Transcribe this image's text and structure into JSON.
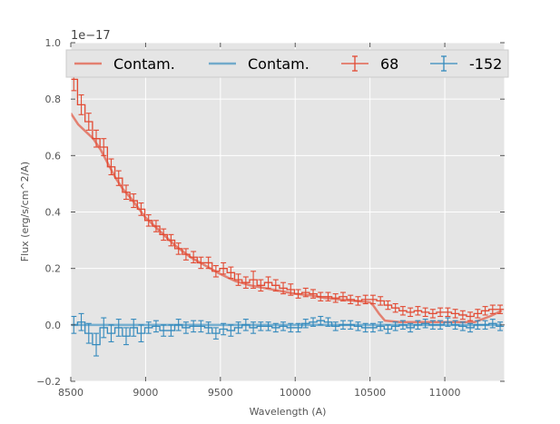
{
  "chart_data": {
    "type": "line",
    "title": "",
    "xlabel": "Wavelength (A)",
    "ylabel": "Flux (erg/s/cm^2/A)",
    "offset_text": "1e−17",
    "scale": 1e-17,
    "xlim": [
      8500,
      11400
    ],
    "ylim": [
      -0.2,
      1.0
    ],
    "x_ticks": [
      8500,
      9000,
      9500,
      10000,
      10500,
      11000
    ],
    "y_ticks": [
      -0.2,
      0.0,
      0.2,
      0.4,
      0.6,
      0.8,
      1.0
    ],
    "x_tick_labels": [
      "8500",
      "9000",
      "9500",
      "10000",
      "10500",
      "11000"
    ],
    "y_tick_labels": [
      "−0.2",
      "0.0",
      "0.2",
      "0.4",
      "0.6",
      "0.8",
      "1.0"
    ],
    "grid": true,
    "legend_position": "top",
    "colors": {
      "red": "#E24A33",
      "blue": "#348ABD",
      "background": "#E5E5E5"
    },
    "series": [
      {
        "name": "Contam.",
        "kind": "line",
        "color": "#E24A33",
        "x": [
          8500,
          8550,
          8600,
          8650,
          8700,
          8750,
          8800,
          8850,
          8900,
          9000,
          9100,
          9200,
          9300,
          9400,
          9500,
          9600,
          9700,
          9800,
          9900,
          10000,
          10100,
          10200,
          10300,
          10400,
          10500,
          10520,
          10560,
          10600,
          10700,
          10800,
          10900,
          11000,
          11100,
          11200,
          11300,
          11380
        ],
        "values": [
          0.75,
          0.71,
          0.685,
          0.66,
          0.62,
          0.57,
          0.52,
          0.48,
          0.45,
          0.38,
          0.33,
          0.28,
          0.24,
          0.21,
          0.18,
          0.155,
          0.14,
          0.13,
          0.12,
          0.11,
          0.105,
          0.095,
          0.09,
          0.085,
          0.08,
          0.07,
          0.04,
          0.015,
          0.01,
          0.01,
          0.01,
          0.01,
          0.01,
          0.01,
          0.03,
          0.05
        ]
      },
      {
        "name": "Contam.",
        "kind": "line",
        "color": "#348ABD",
        "x": [
          8500,
          9000,
          9500,
          10000,
          10500,
          11000,
          11380
        ],
        "values": [
          0.0,
          0.0,
          0.0,
          0.0,
          0.0,
          0.0,
          0.0
        ]
      },
      {
        "name": "68",
        "kind": "errorbar",
        "color": "#E24A33",
        "x": [
          8520,
          8570,
          8620,
          8670,
          8720,
          8770,
          8820,
          8870,
          8920,
          8970,
          9020,
          9070,
          9120,
          9170,
          9220,
          9270,
          9320,
          9370,
          9420,
          9470,
          9520,
          9570,
          9620,
          9670,
          9720,
          9770,
          9820,
          9870,
          9920,
          9970,
          10020,
          10070,
          10120,
          10170,
          10220,
          10270,
          10320,
          10370,
          10420,
          10470,
          10520,
          10570,
          10620,
          10670,
          10720,
          10770,
          10820,
          10870,
          10920,
          10970,
          11020,
          11070,
          11120,
          11170,
          11220,
          11270,
          11320,
          11370
        ],
        "values": [
          0.87,
          0.78,
          0.72,
          0.66,
          0.63,
          0.56,
          0.52,
          0.47,
          0.44,
          0.41,
          0.37,
          0.35,
          0.32,
          0.3,
          0.27,
          0.25,
          0.24,
          0.22,
          0.22,
          0.19,
          0.2,
          0.185,
          0.16,
          0.15,
          0.16,
          0.14,
          0.15,
          0.14,
          0.13,
          0.125,
          0.11,
          0.115,
          0.11,
          0.1,
          0.1,
          0.095,
          0.1,
          0.09,
          0.085,
          0.09,
          0.09,
          0.085,
          0.07,
          0.06,
          0.05,
          0.045,
          0.05,
          0.045,
          0.04,
          0.045,
          0.045,
          0.04,
          0.035,
          0.03,
          0.04,
          0.05,
          0.055,
          0.055
        ],
        "errors": [
          0.04,
          0.035,
          0.03,
          0.03,
          0.03,
          0.028,
          0.026,
          0.025,
          0.024,
          0.022,
          0.02,
          0.02,
          0.02,
          0.02,
          0.02,
          0.02,
          0.02,
          0.02,
          0.02,
          0.02,
          0.02,
          0.02,
          0.02,
          0.02,
          0.03,
          0.02,
          0.02,
          0.02,
          0.02,
          0.02,
          0.015,
          0.015,
          0.015,
          0.015,
          0.015,
          0.015,
          0.015,
          0.015,
          0.015,
          0.015,
          0.015,
          0.015,
          0.015,
          0.015,
          0.015,
          0.015,
          0.015,
          0.015,
          0.015,
          0.015,
          0.015,
          0.015,
          0.015,
          0.015,
          0.015,
          0.015,
          0.015,
          0.015
        ]
      },
      {
        "name": "-152",
        "kind": "errorbar",
        "color": "#348ABD",
        "x": [
          8520,
          8570,
          8620,
          8670,
          8720,
          8770,
          8820,
          8870,
          8920,
          8970,
          9020,
          9070,
          9120,
          9170,
          9220,
          9270,
          9320,
          9370,
          9420,
          9470,
          9520,
          9570,
          9620,
          9670,
          9720,
          9770,
          9820,
          9870,
          9920,
          9970,
          10020,
          10070,
          10120,
          10170,
          10220,
          10270,
          10320,
          10370,
          10420,
          10470,
          10520,
          10570,
          10620,
          10670,
          10720,
          10770,
          10820,
          10870,
          10920,
          10970,
          11020,
          11070,
          11120,
          11170,
          11220,
          11270,
          11320,
          11370
        ],
        "values": [
          0.0,
          0.01,
          -0.03,
          -0.07,
          -0.01,
          -0.03,
          -0.01,
          -0.04,
          -0.01,
          -0.03,
          -0.01,
          -0.005,
          -0.02,
          -0.02,
          0.0,
          -0.01,
          -0.005,
          -0.005,
          -0.01,
          -0.03,
          -0.015,
          -0.02,
          -0.01,
          0.0,
          -0.01,
          -0.005,
          -0.005,
          -0.01,
          -0.005,
          -0.01,
          -0.01,
          0.005,
          0.01,
          0.015,
          0.01,
          -0.005,
          0.0,
          0.0,
          -0.005,
          -0.01,
          -0.01,
          -0.005,
          -0.015,
          -0.005,
          0.0,
          -0.01,
          0.0,
          0.005,
          0.0,
          0.0,
          0.01,
          0.0,
          -0.005,
          -0.01,
          0.0,
          0.0,
          0.005,
          -0.005
        ],
        "errors": [
          0.03,
          0.03,
          0.035,
          0.04,
          0.035,
          0.03,
          0.03,
          0.03,
          0.03,
          0.03,
          0.02,
          0.02,
          0.02,
          0.02,
          0.02,
          0.02,
          0.02,
          0.02,
          0.02,
          0.02,
          0.02,
          0.02,
          0.02,
          0.02,
          0.02,
          0.015,
          0.015,
          0.015,
          0.015,
          0.015,
          0.015,
          0.015,
          0.015,
          0.015,
          0.015,
          0.015,
          0.015,
          0.015,
          0.015,
          0.015,
          0.015,
          0.015,
          0.015,
          0.015,
          0.015,
          0.015,
          0.015,
          0.015,
          0.015,
          0.015,
          0.015,
          0.015,
          0.015,
          0.015,
          0.015,
          0.015,
          0.015,
          0.015
        ]
      }
    ],
    "legend": [
      {
        "label": "Contam.",
        "kind": "line",
        "color": "#E24A33"
      },
      {
        "label": "Contam.",
        "kind": "line",
        "color": "#348ABD"
      },
      {
        "label": "68",
        "kind": "errorbar",
        "color": "#E24A33"
      },
      {
        "label": "-152",
        "kind": "errorbar",
        "color": "#348ABD"
      }
    ]
  }
}
